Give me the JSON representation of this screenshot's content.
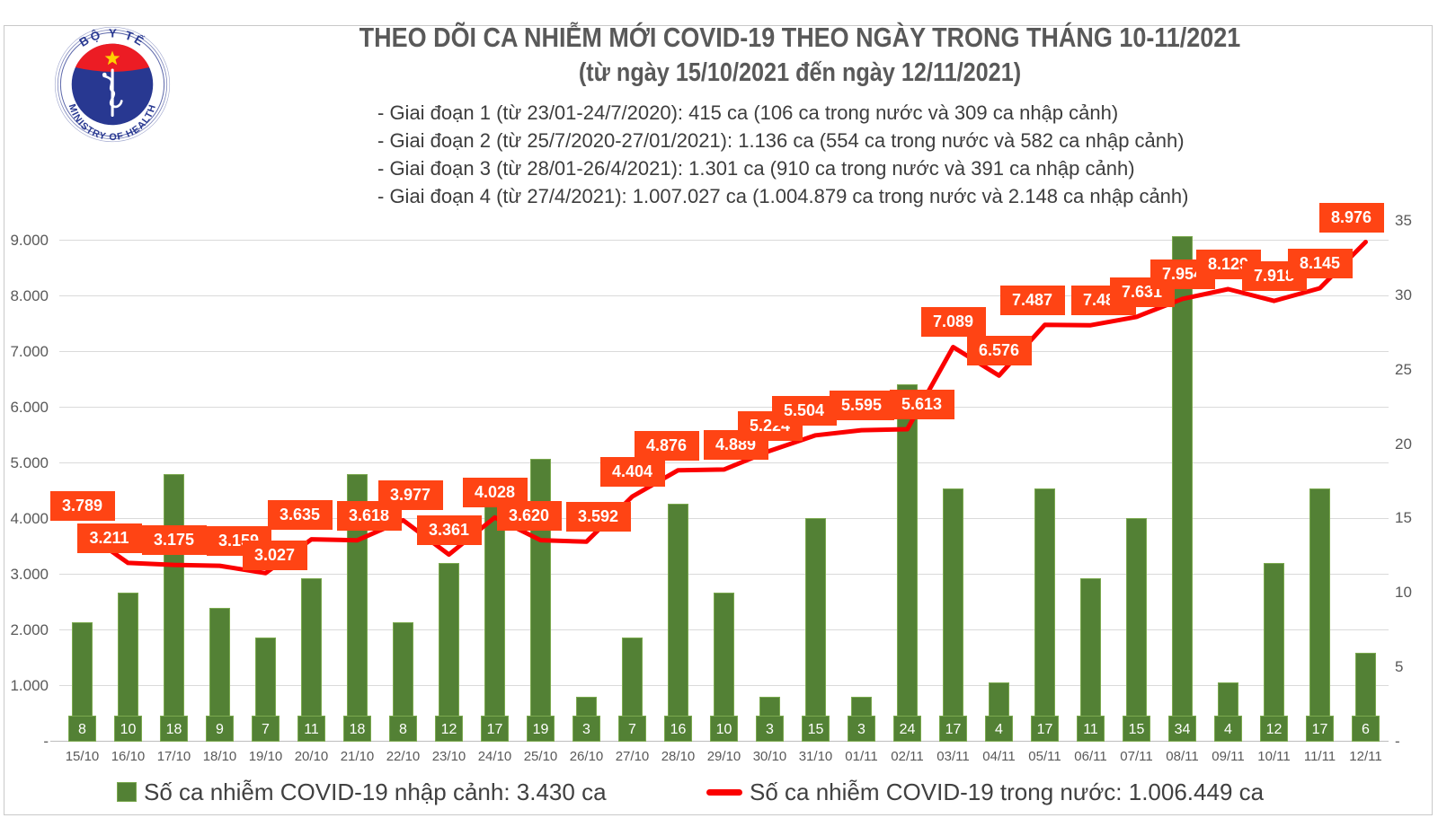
{
  "logo": {
    "top_text": "BỘ Y TẾ",
    "bottom_text": "MINISTRY OF HEALTH"
  },
  "header": {
    "title": "THEO DÕI CA NHIỄM MỚI COVID-19 THEO NGÀY TRONG THÁNG 10-11/2021",
    "subtitle": "(từ ngày 15/10/2021 đến ngày 12/11/2021)",
    "stages": [
      "- Giai đoạn 1 (từ 23/01-24/7/2020): 415 ca (106 ca trong nước và 309 ca nhập cảnh)",
      "- Giai đoạn 2 (từ 25/7/2020-27/01/2021): 1.136 ca (554 ca trong nước và 582 ca nhập cảnh)",
      "- Giai đoạn 3 (từ 28/01-26/4/2021): 1.301 ca (910 ca trong nước và 391 ca nhập cảnh)",
      "- Giai đoạn 4 (từ 27/4/2021): 1.007.027 ca (1.004.879 ca trong nước và 2.148 ca nhập cảnh)"
    ]
  },
  "chart_data": {
    "type": "combo",
    "categories": [
      "15/10",
      "16/10",
      "17/10",
      "18/10",
      "19/10",
      "20/10",
      "21/10",
      "22/10",
      "23/10",
      "24/10",
      "25/10",
      "26/10",
      "27/10",
      "28/10",
      "29/10",
      "30/10",
      "31/10",
      "01/11",
      "02/11",
      "03/11",
      "04/11",
      "05/11",
      "06/11",
      "07/11",
      "08/11",
      "09/11",
      "10/11",
      "11/11",
      "12/11"
    ],
    "series": [
      {
        "name": "Số ca nhiễm COVID-19 nhập cảnh",
        "chart_type": "bar",
        "axis": "right",
        "color": "#538135",
        "values": [
          8,
          10,
          18,
          9,
          7,
          11,
          18,
          8,
          12,
          17,
          19,
          3,
          7,
          16,
          10,
          3,
          15,
          3,
          24,
          17,
          4,
          17,
          11,
          15,
          34,
          4,
          12,
          17,
          6
        ]
      },
      {
        "name": "Số ca nhiễm COVID-19 trong nước",
        "chart_type": "line",
        "axis": "left",
        "color": "#fb0000",
        "label_bg": "#ff4414",
        "values": [
          3789,
          3211,
          3175,
          3159,
          3027,
          3635,
          3618,
          3977,
          3361,
          4028,
          3620,
          3592,
          4404,
          4876,
          4889,
          5224,
          5504,
          5595,
          5613,
          7089,
          6576,
          7487,
          7480,
          7631,
          7954,
          8129,
          7918,
          8145,
          8976
        ],
        "labels": [
          "3.789",
          "3.211",
          "3.175",
          "3.159",
          "3.027",
          "3.635",
          "3.618",
          "3.977",
          "3.361",
          "4.028",
          "3.620",
          "3.592",
          "4.404",
          "4.876",
          "4.889",
          "5.224",
          "5.504",
          "5.595",
          "5.613",
          "7.089",
          "6.576",
          "7.487",
          "7.480",
          "7.631",
          "7.954",
          "8.129",
          "7.918",
          "8.145",
          "8.976"
        ]
      }
    ],
    "left_axis": {
      "ticks": [
        "9.000",
        "8.000",
        "7.000",
        "6.000",
        "5.000",
        "4.000",
        "3.000",
        "2.000",
        "1.000",
        "-"
      ],
      "min": 0,
      "max_labeled": 9000
    },
    "right_axis": {
      "ticks": [
        "35",
        "30",
        "25",
        "20",
        "15",
        "10",
        "5",
        "-"
      ],
      "min": 0,
      "max": 35
    },
    "grid": true,
    "legend_position": "bottom"
  },
  "legend": {
    "items": [
      {
        "swatch": "green-bar",
        "label": "Số ca nhiễm COVID-19 nhập cảnh: 3.430 ca"
      },
      {
        "swatch": "red-line",
        "label": "Số ca nhiễm COVID-19 trong nước: 1.006.449 ca"
      }
    ]
  }
}
